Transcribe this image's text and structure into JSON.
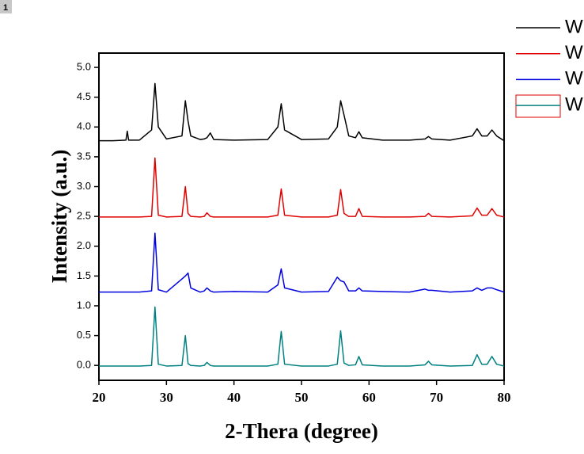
{
  "badge": "1",
  "chart_data": {
    "type": "line",
    "xlabel": "2-Thera (degree)",
    "ylabel": "Intensity (a.u.)",
    "x": [
      20,
      22,
      24,
      24.2,
      24.4,
      26,
      27.8,
      28.3,
      28.8,
      30,
      32.3,
      32.8,
      33.2,
      33.6,
      35,
      35.6,
      36.0,
      36.5,
      37,
      40,
      45,
      46.5,
      47.0,
      47.5,
      50,
      54,
      55.3,
      55.8,
      56.3,
      57,
      58,
      58.5,
      59,
      62,
      66,
      68.3,
      68.8,
      69.3,
      72,
      75.3,
      76.0,
      76.7,
      77.5,
      78.2,
      78.9,
      80
    ],
    "series": [
      {
        "name": "W",
        "color": "#000000",
        "values": [
          3.77,
          3.77,
          3.78,
          3.93,
          3.78,
          3.78,
          3.95,
          4.73,
          4.0,
          3.8,
          3.85,
          4.44,
          4.1,
          3.85,
          3.79,
          3.8,
          3.82,
          3.9,
          3.79,
          3.78,
          3.79,
          4.0,
          4.39,
          3.95,
          3.79,
          3.8,
          4.0,
          4.44,
          4.2,
          3.85,
          3.82,
          3.92,
          3.82,
          3.78,
          3.78,
          3.8,
          3.84,
          3.8,
          3.78,
          3.85,
          3.97,
          3.85,
          3.85,
          3.95,
          3.85,
          3.77
        ]
      },
      {
        "name": "W",
        "color": "#e00000",
        "values": [
          2.49,
          2.49,
          2.49,
          2.49,
          2.49,
          2.49,
          2.5,
          3.48,
          2.52,
          2.49,
          2.5,
          3.0,
          2.55,
          2.5,
          2.49,
          2.5,
          2.56,
          2.5,
          2.49,
          2.49,
          2.49,
          2.52,
          2.96,
          2.52,
          2.49,
          2.49,
          2.52,
          2.95,
          2.55,
          2.5,
          2.5,
          2.63,
          2.5,
          2.49,
          2.49,
          2.5,
          2.55,
          2.5,
          2.49,
          2.51,
          2.64,
          2.52,
          2.52,
          2.63,
          2.52,
          2.49
        ]
      },
      {
        "name": "W",
        "color": "#0000e0",
        "values": [
          1.23,
          1.23,
          1.23,
          1.23,
          1.23,
          1.23,
          1.25,
          2.22,
          1.27,
          1.23,
          1.45,
          1.5,
          1.55,
          1.3,
          1.23,
          1.25,
          1.3,
          1.25,
          1.23,
          1.24,
          1.23,
          1.35,
          1.62,
          1.3,
          1.23,
          1.24,
          1.48,
          1.42,
          1.4,
          1.25,
          1.25,
          1.3,
          1.25,
          1.24,
          1.23,
          1.28,
          1.26,
          1.26,
          1.23,
          1.25,
          1.3,
          1.26,
          1.3,
          1.3,
          1.27,
          1.23
        ]
      },
      {
        "name": "W",
        "color": "#008080",
        "values": [
          -0.01,
          -0.01,
          -0.01,
          -0.01,
          -0.01,
          -0.01,
          0.0,
          0.98,
          0.02,
          -0.01,
          0.0,
          0.5,
          0.03,
          0.0,
          -0.01,
          0.0,
          0.05,
          0.0,
          -0.01,
          -0.01,
          -0.01,
          0.02,
          0.57,
          0.02,
          -0.01,
          -0.01,
          0.02,
          0.58,
          0.04,
          0.0,
          0.01,
          0.15,
          0.01,
          -0.01,
          -0.01,
          0.01,
          0.07,
          0.01,
          -0.01,
          0.0,
          0.18,
          0.02,
          0.02,
          0.15,
          0.02,
          -0.01
        ]
      }
    ],
    "xlim": [
      20,
      80
    ],
    "xticks": [
      20,
      30,
      40,
      50,
      60,
      70,
      80
    ],
    "ylim": [
      -0.25,
      5.24
    ],
    "yticks": [
      {
        "value": 0,
        "label": "0.0"
      },
      0.5,
      {
        "value": 1,
        "label": "1.0"
      },
      1.5,
      {
        "value": 2,
        "label": "2.0"
      },
      2.5,
      {
        "value": 3,
        "label": "3.0"
      },
      3.5,
      {
        "value": 4,
        "label": "4.0"
      },
      4.5,
      {
        "value": 5,
        "label": "5.0"
      }
    ],
    "grid": false
  }
}
